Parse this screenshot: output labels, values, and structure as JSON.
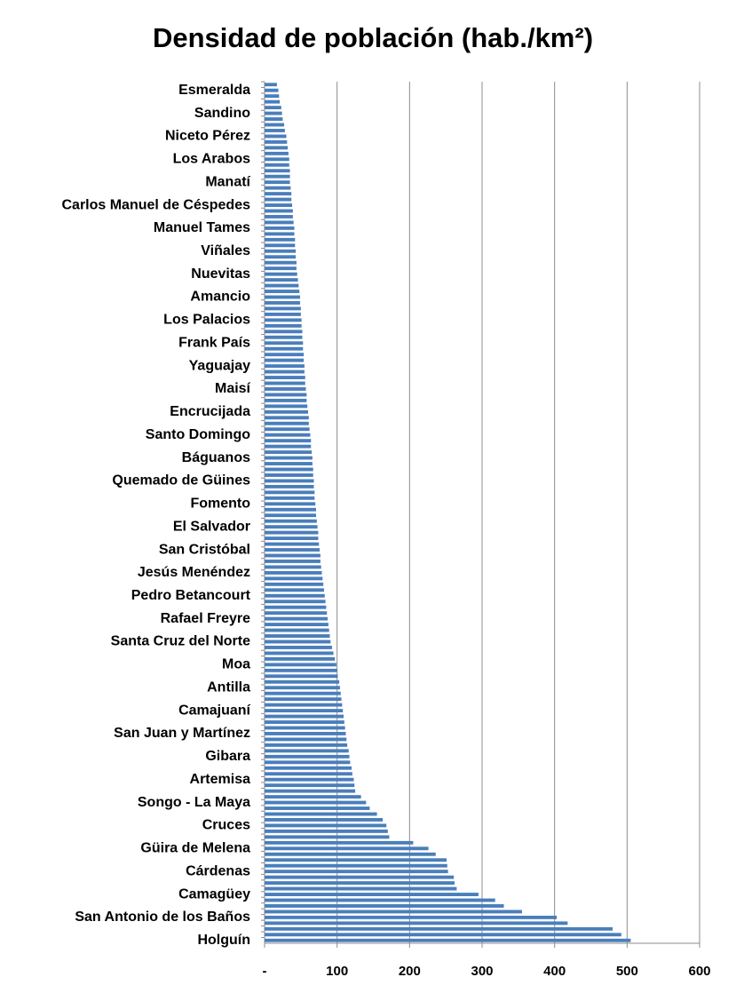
{
  "chart_data": {
    "type": "barh",
    "title": "Densidad de población (hab./km²)",
    "categories": [
      null,
      "Esmeralda",
      null,
      null,
      null,
      "Sandino",
      null,
      null,
      null,
      "Niceto Pérez",
      null,
      null,
      null,
      "Los Arabos",
      null,
      null,
      null,
      "Manatí",
      null,
      null,
      null,
      "Carlos Manuel de Céspedes",
      null,
      null,
      null,
      "Manuel Tames",
      null,
      null,
      null,
      "Viñales",
      null,
      null,
      null,
      "Nuevitas",
      null,
      null,
      null,
      "Amancio",
      null,
      null,
      null,
      "Los Palacios",
      null,
      null,
      null,
      "Frank País",
      null,
      null,
      null,
      "Yaguajay",
      null,
      null,
      null,
      "Maisí",
      null,
      null,
      null,
      "Encrucijada",
      null,
      null,
      null,
      "Santo Domingo",
      null,
      null,
      null,
      "Báguanos",
      null,
      null,
      null,
      "Quemado de Güines",
      null,
      null,
      null,
      "Fomento",
      null,
      null,
      null,
      "El Salvador",
      null,
      null,
      null,
      "San Cristóbal",
      null,
      null,
      null,
      "Jesús Menéndez",
      null,
      null,
      null,
      "Pedro Betancourt",
      null,
      null,
      null,
      "Rafael Freyre",
      null,
      null,
      null,
      "Santa Cruz del Norte",
      null,
      null,
      null,
      "Moa",
      null,
      null,
      null,
      "Antilla",
      null,
      null,
      null,
      "Camajuaní",
      null,
      null,
      null,
      "San Juan y Martínez",
      null,
      null,
      null,
      "Gibara",
      null,
      null,
      null,
      "Artemisa",
      null,
      null,
      null,
      "Songo - La Maya",
      null,
      null,
      null,
      "Cruces",
      null,
      null,
      null,
      "Güira de Melena",
      null,
      null,
      null,
      "Cárdenas",
      null,
      null,
      null,
      "Camagüey",
      null,
      null,
      null,
      "San Antonio de los Baños",
      null,
      null,
      null,
      "Holguín"
    ],
    "values": [
      17,
      19,
      20,
      21,
      23,
      24,
      25,
      27,
      28,
      30,
      31,
      32,
      33,
      34,
      34,
      35,
      35,
      35,
      36,
      37,
      37,
      38,
      39,
      39,
      40,
      41,
      41,
      42,
      42,
      43,
      43,
      44,
      44,
      45,
      46,
      47,
      48,
      49,
      49,
      50,
      50,
      51,
      51,
      52,
      52,
      53,
      53,
      54,
      54,
      55,
      55,
      56,
      56,
      57,
      58,
      58,
      59,
      60,
      61,
      61,
      62,
      63,
      64,
      64,
      65,
      66,
      66,
      67,
      67,
      68,
      68,
      69,
      69,
      70,
      71,
      71,
      72,
      73,
      74,
      74,
      75,
      76,
      77,
      77,
      78,
      79,
      80,
      81,
      82,
      83,
      84,
      85,
      86,
      87,
      88,
      89,
      90,
      91,
      93,
      95,
      97,
      99,
      100,
      101,
      103,
      104,
      105,
      106,
      107,
      108,
      109,
      110,
      111,
      112,
      113,
      114,
      116,
      117,
      118,
      120,
      121,
      123,
      124,
      125,
      133,
      140,
      145,
      155,
      163,
      168,
      170,
      172,
      205,
      226,
      236,
      251,
      252,
      253,
      261,
      262,
      265,
      295,
      318,
      330,
      355,
      403,
      418,
      480,
      492,
      505
    ],
    "color": "#4a7ebb",
    "xlim": [
      0,
      600
    ],
    "xticks": [
      {
        "value": 0,
        "label": "-"
      },
      100,
      200,
      300,
      400,
      500,
      600
    ],
    "grid": true
  }
}
